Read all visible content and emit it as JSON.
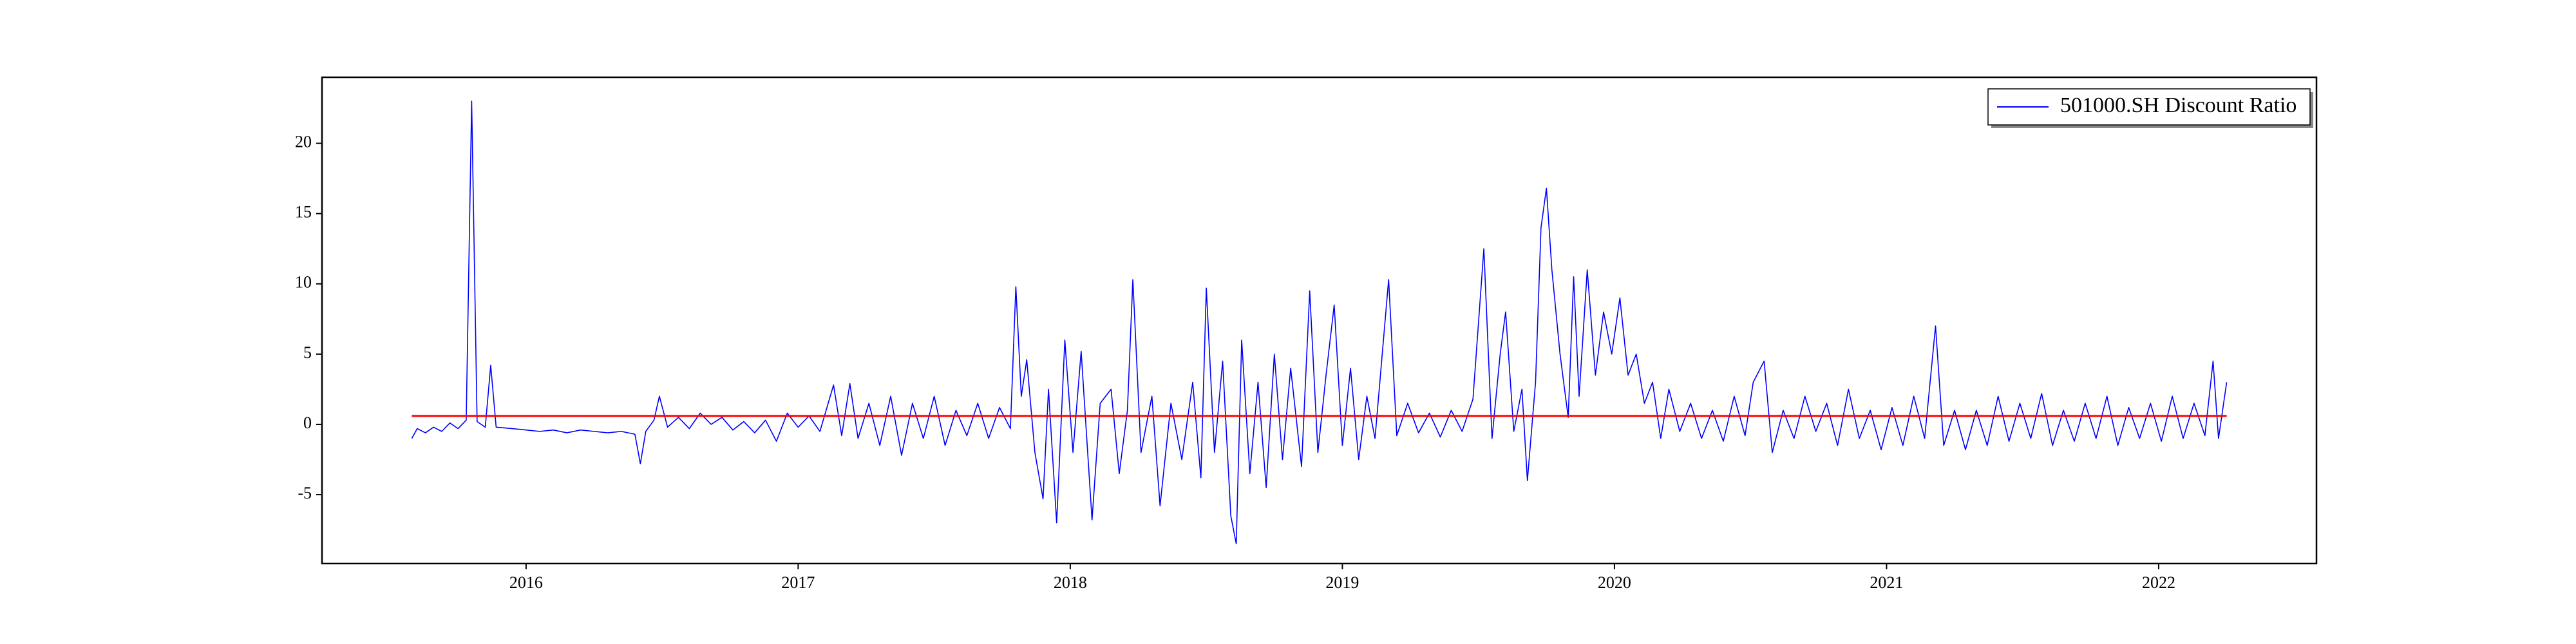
{
  "chart_data": {
    "type": "line",
    "series": [
      {
        "name": "501000.SH Discount Ratio",
        "color": "#0000ff",
        "x": [
          2015.58,
          2015.6,
          2015.63,
          2015.66,
          2015.69,
          2015.72,
          2015.75,
          2015.78,
          2015.8,
          2015.82,
          2015.85,
          2015.87,
          2015.89,
          2015.95,
          2016.0,
          2016.05,
          2016.1,
          2016.15,
          2016.2,
          2016.25,
          2016.3,
          2016.35,
          2016.4,
          2016.42,
          2016.44,
          2016.47,
          2016.49,
          2016.52,
          2016.56,
          2016.6,
          2016.64,
          2016.68,
          2016.72,
          2016.76,
          2016.8,
          2016.84,
          2016.88,
          2016.92,
          2016.96,
          2017.0,
          2017.04,
          2017.08,
          2017.13,
          2017.16,
          2017.19,
          2017.22,
          2017.26,
          2017.3,
          2017.34,
          2017.38,
          2017.42,
          2017.46,
          2017.5,
          2017.54,
          2017.58,
          2017.62,
          2017.66,
          2017.7,
          2017.74,
          2017.78,
          2017.8,
          2017.82,
          2017.84,
          2017.87,
          2017.9,
          2017.92,
          2017.95,
          2017.98,
          2018.01,
          2018.04,
          2018.08,
          2018.11,
          2018.15,
          2018.18,
          2018.21,
          2018.23,
          2018.26,
          2018.3,
          2018.33,
          2018.37,
          2018.41,
          2018.45,
          2018.48,
          2018.5,
          2018.53,
          2018.56,
          2018.59,
          2018.61,
          2018.63,
          2018.66,
          2018.69,
          2018.72,
          2018.75,
          2018.78,
          2018.81,
          2018.85,
          2018.88,
          2018.91,
          2018.94,
          2018.97,
          2019.0,
          2019.03,
          2019.06,
          2019.09,
          2019.12,
          2019.17,
          2019.2,
          2019.24,
          2019.28,
          2019.32,
          2019.36,
          2019.4,
          2019.44,
          2019.48,
          2019.52,
          2019.55,
          2019.58,
          2019.6,
          2019.63,
          2019.66,
          2019.68,
          2019.71,
          2019.73,
          2019.75,
          2019.77,
          2019.8,
          2019.83,
          2019.85,
          2019.87,
          2019.9,
          2019.93,
          2019.96,
          2019.99,
          2020.02,
          2020.05,
          2020.08,
          2020.11,
          2020.14,
          2020.17,
          2020.2,
          2020.24,
          2020.28,
          2020.32,
          2020.36,
          2020.4,
          2020.44,
          2020.48,
          2020.51,
          2020.55,
          2020.58,
          2020.62,
          2020.66,
          2020.7,
          2020.74,
          2020.78,
          2020.82,
          2020.86,
          2020.9,
          2020.94,
          2020.98,
          2021.02,
          2021.06,
          2021.1,
          2021.14,
          2021.18,
          2021.21,
          2021.25,
          2021.29,
          2021.33,
          2021.37,
          2021.41,
          2021.45,
          2021.49,
          2021.53,
          2021.57,
          2021.61,
          2021.65,
          2021.69,
          2021.73,
          2021.77,
          2021.81,
          2021.85,
          2021.89,
          2021.93,
          2021.97,
          2022.01,
          2022.05,
          2022.09,
          2022.13,
          2022.17,
          2022.2,
          2022.22,
          2022.25
        ],
        "values": [
          -1.0,
          -0.3,
          -0.6,
          -0.2,
          -0.5,
          0.1,
          -0.3,
          0.3,
          23.0,
          0.2,
          -0.2,
          4.2,
          -0.2,
          -0.3,
          -0.4,
          -0.5,
          -0.4,
          -0.6,
          -0.4,
          -0.5,
          -0.6,
          -0.5,
          -0.7,
          -2.8,
          -0.5,
          0.3,
          2.0,
          -0.2,
          0.5,
          -0.3,
          0.8,
          0.0,
          0.5,
          -0.4,
          0.2,
          -0.6,
          0.3,
          -1.2,
          0.8,
          -0.2,
          0.6,
          -0.5,
          2.8,
          -0.8,
          2.9,
          -1.0,
          1.5,
          -1.5,
          2.0,
          -2.2,
          1.5,
          -1.0,
          2.0,
          -1.5,
          1.0,
          -0.8,
          1.5,
          -1.0,
          1.2,
          -0.3,
          9.8,
          2.0,
          4.6,
          -2.0,
          -5.3,
          2.5,
          -7.0,
          6.0,
          -2.0,
          5.2,
          -6.8,
          1.5,
          2.5,
          -3.5,
          1.0,
          10.3,
          -2.0,
          2.0,
          -5.8,
          1.5,
          -2.5,
          3.0,
          -3.8,
          9.7,
          -2.0,
          4.5,
          -6.5,
          -8.5,
          6.0,
          -3.5,
          3.0,
          -4.5,
          5.0,
          -2.5,
          4.0,
          -3.0,
          9.5,
          -2.0,
          3.5,
          8.5,
          -1.5,
          4.0,
          -2.5,
          2.0,
          -1.0,
          10.3,
          -0.8,
          1.5,
          -0.6,
          0.8,
          -0.9,
          1.0,
          -0.5,
          1.8,
          12.5,
          -1.0,
          5.0,
          8.0,
          -0.5,
          2.5,
          -4.0,
          3.0,
          14.0,
          16.8,
          11.0,
          5.0,
          0.5,
          10.5,
          2.0,
          11.0,
          3.5,
          8.0,
          5.0,
          9.0,
          3.5,
          5.0,
          1.5,
          3.0,
          -1.0,
          2.5,
          -0.5,
          1.5,
          -1.0,
          1.0,
          -1.2,
          2.0,
          -0.8,
          3.0,
          4.5,
          -2.0,
          1.0,
          -1.0,
          2.0,
          -0.5,
          1.5,
          -1.5,
          2.5,
          -1.0,
          1.0,
          -1.8,
          1.2,
          -1.5,
          2.0,
          -1.0,
          7.0,
          -1.5,
          1.0,
          -1.8,
          1.0,
          -1.5,
          2.0,
          -1.2,
          1.5,
          -1.0,
          2.2,
          -1.5,
          1.0,
          -1.2,
          1.5,
          -1.0,
          2.0,
          -1.5,
          1.2,
          -1.0,
          1.5,
          -1.2,
          2.0,
          -1.0,
          1.5,
          -0.8,
          4.5,
          -1.0,
          3.0
        ]
      }
    ],
    "mean_line": {
      "value": 0.6,
      "color": "#ff0000"
    },
    "xlim": [
      2015.25,
      2022.58
    ],
    "xticks": [
      2016,
      2017,
      2018,
      2019,
      2020,
      2021,
      2022
    ],
    "ylim": [
      -9.9,
      24.7
    ],
    "yticks": [
      -5,
      0,
      5,
      10,
      15,
      20
    ],
    "legend": "upper right"
  }
}
